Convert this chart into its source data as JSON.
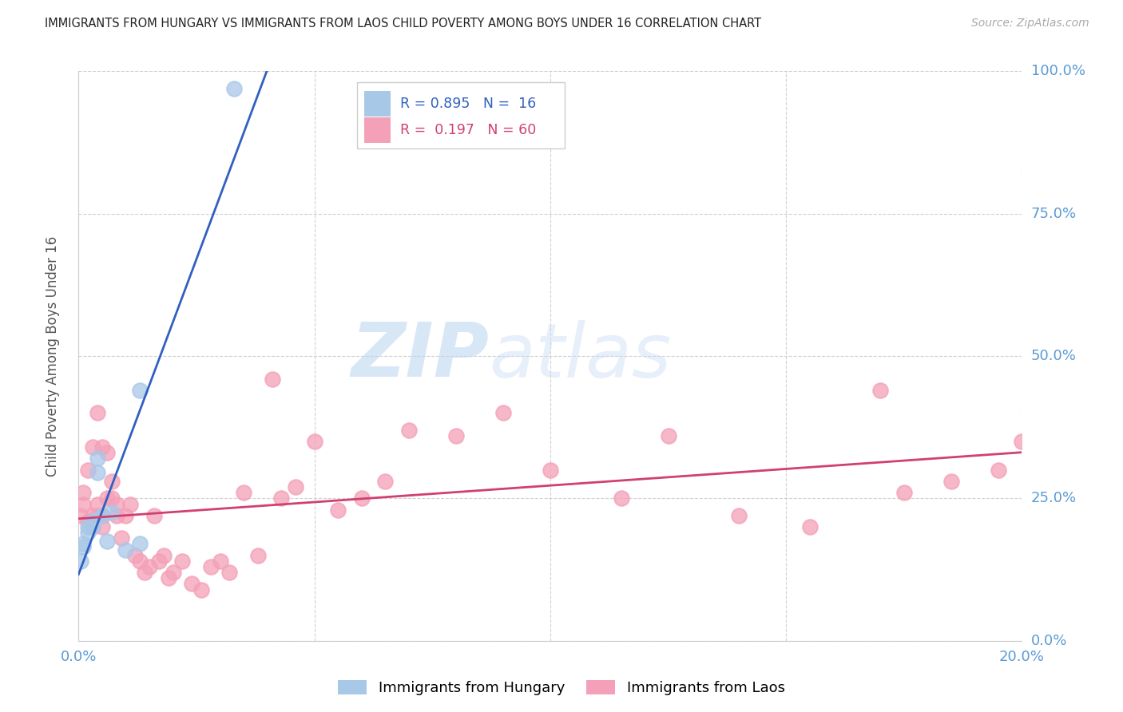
{
  "title": "IMMIGRANTS FROM HUNGARY VS IMMIGRANTS FROM LAOS CHILD POVERTY AMONG BOYS UNDER 16 CORRELATION CHART",
  "source": "Source: ZipAtlas.com",
  "ylabel": "Child Poverty Among Boys Under 16",
  "background_color": "#ffffff",
  "grid_color": "#cccccc",
  "hungary_color": "#a8c8e8",
  "laos_color": "#f4a0b8",
  "hungary_line_color": "#3060c0",
  "laos_line_color": "#d04070",
  "axis_label_color": "#5b9bd5",
  "ylabel_color": "#555555",
  "legend_R_hungary": "0.895",
  "legend_N_hungary": "16",
  "legend_R_laos": "0.197",
  "legend_N_laos": "60",
  "xmin": 0.0,
  "xmax": 0.2,
  "ymin": 0.0,
  "ymax": 1.0,
  "yticks": [
    0.0,
    0.25,
    0.5,
    0.75,
    1.0
  ],
  "xticks": [
    0.0,
    0.05,
    0.1,
    0.15,
    0.2
  ],
  "hungary_x": [
    0.0005,
    0.001,
    0.001,
    0.002,
    0.002,
    0.003,
    0.003,
    0.004,
    0.004,
    0.005,
    0.006,
    0.007,
    0.01,
    0.013,
    0.013,
    0.033
  ],
  "hungary_y": [
    0.14,
    0.165,
    0.17,
    0.19,
    0.2,
    0.2,
    0.21,
    0.32,
    0.295,
    0.22,
    0.175,
    0.225,
    0.16,
    0.17,
    0.44,
    0.97
  ],
  "laos_x": [
    0.0005,
    0.001,
    0.001,
    0.002,
    0.002,
    0.003,
    0.003,
    0.003,
    0.004,
    0.004,
    0.004,
    0.005,
    0.005,
    0.005,
    0.006,
    0.006,
    0.007,
    0.007,
    0.008,
    0.008,
    0.009,
    0.01,
    0.011,
    0.012,
    0.013,
    0.014,
    0.015,
    0.016,
    0.017,
    0.018,
    0.019,
    0.02,
    0.022,
    0.024,
    0.026,
    0.028,
    0.03,
    0.032,
    0.035,
    0.038,
    0.041,
    0.043,
    0.046,
    0.05,
    0.055,
    0.06,
    0.065,
    0.07,
    0.08,
    0.09,
    0.1,
    0.115,
    0.125,
    0.14,
    0.155,
    0.17,
    0.175,
    0.185,
    0.195,
    0.2
  ],
  "laos_y": [
    0.22,
    0.24,
    0.26,
    0.21,
    0.3,
    0.2,
    0.34,
    0.22,
    0.4,
    0.22,
    0.24,
    0.2,
    0.34,
    0.22,
    0.25,
    0.33,
    0.25,
    0.28,
    0.24,
    0.22,
    0.18,
    0.22,
    0.24,
    0.15,
    0.14,
    0.12,
    0.13,
    0.22,
    0.14,
    0.15,
    0.11,
    0.12,
    0.14,
    0.1,
    0.09,
    0.13,
    0.14,
    0.12,
    0.26,
    0.15,
    0.46,
    0.25,
    0.27,
    0.35,
    0.23,
    0.25,
    0.28,
    0.37,
    0.36,
    0.4,
    0.3,
    0.25,
    0.36,
    0.22,
    0.2,
    0.44,
    0.26,
    0.28,
    0.3,
    0.35
  ]
}
